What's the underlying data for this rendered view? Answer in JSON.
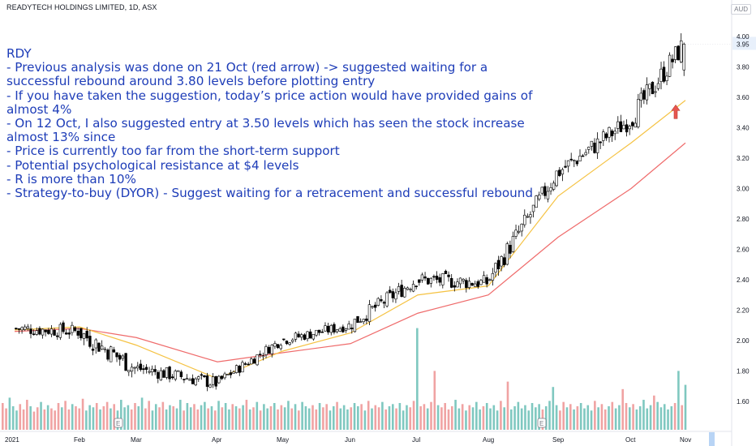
{
  "header": {
    "symbol_title": "READYTECH HOLDINGS LIMITED, 1D, ASX",
    "currency": "AUD"
  },
  "annotation": {
    "lines": [
      "RDY",
      "- Previous analysis was done on 21 Oct (red arrow) -> suggested waiting for a",
      "successful rebound around 3.80 levels before plotting entry",
      "- If you have taken the suggestion, today’s price action would have provided gains of",
      "almost 4%",
      "- On 12 Oct, I also suggested entry at 3.50 levels which has seen the stock increase",
      "almost 13% since",
      "- Price is currently too far from the short-term support",
      "- Potential psychological resistance at $4 levels",
      "- R is more than 10%",
      "- Strategy-to-buy (DYOR) - Suggest waiting for a retracement and successful rebound"
    ]
  },
  "colors": {
    "bull_candle_body": "#ffffff",
    "bear_candle_body": "#000000",
    "candle_outline": "#000000",
    "fast_ma": "#f5c242",
    "slow_ma": "#ef6b6b",
    "volume_up": "#7fc8c0",
    "volume_down": "#f0a3a3",
    "annotation_text": "#1e3db8",
    "arrow": "#e8564f",
    "axis_text": "#131722",
    "last_price_bg": "#e8f0fb"
  },
  "icons": {
    "earnings_markers": [
      "earnings-e-icon",
      "earnings-e-icon"
    ],
    "annotation_arrow": "up-arrow-icon"
  },
  "chart_data": {
    "type": "candlestick",
    "title": "READYTECH HOLDINGS LIMITED, 1D, ASX",
    "ylabel": "AUD",
    "ylim": [
      1.4,
      4.0
    ],
    "y_scale": "linear",
    "y_ticks": [
      "4.00",
      "3.95",
      "3.80",
      "3.60",
      "3.40",
      "3.20",
      "3.00",
      "2.80",
      "2.60",
      "2.40",
      "2.20",
      "2.00",
      "1.80",
      "1.60"
    ],
    "x_ticks": [
      "2021",
      "Feb",
      "Mar",
      "Apr",
      "May",
      "Jun",
      "Jul",
      "Aug",
      "Sep",
      "Oct",
      "Nov"
    ],
    "last_price": 3.95,
    "series": [
      {
        "name": "Price",
        "kind": "candlestick",
        "segments": [
          {
            "start": "2021",
            "end": "Feb",
            "from": 2.08,
            "to": 2.06,
            "range": 0.09
          },
          {
            "start": "Feb",
            "end": "Mar",
            "from": 2.06,
            "to": 1.82,
            "range": 0.13
          },
          {
            "start": "Mar",
            "end": "Apr",
            "from": 1.82,
            "to": 1.72,
            "range": 0.09
          },
          {
            "start": "Apr",
            "end": "May",
            "from": 1.72,
            "to": 2.0,
            "range": 0.07
          },
          {
            "start": "May",
            "end": "Jun",
            "from": 2.0,
            "to": 2.1,
            "range": 0.07
          },
          {
            "start": "Jun",
            "end": "Jul",
            "from": 2.1,
            "to": 2.4,
            "range": 0.1
          },
          {
            "start": "Jul",
            "end": "Aug",
            "from": 2.4,
            "to": 2.38,
            "range": 0.1
          },
          {
            "start": "Aug",
            "end": "Sep",
            "from": 2.38,
            "to": 3.1,
            "range": 0.13
          },
          {
            "start": "Sep",
            "end": "Oct",
            "from": 3.1,
            "to": 3.45,
            "range": 0.13
          },
          {
            "start": "Oct",
            "end": "Nov",
            "from": 3.45,
            "to": 3.95,
            "range": 0.15
          }
        ]
      },
      {
        "name": "",
        "kind": "moving-average-fast",
        "points": [
          [
            "2021",
            2.07
          ],
          [
            "Feb",
            2.09
          ],
          [
            "Mar",
            1.97
          ],
          [
            "Apr",
            1.75
          ],
          [
            "May",
            1.93
          ],
          [
            "Jun",
            2.05
          ],
          [
            "Jul",
            2.3
          ],
          [
            "Aug",
            2.36
          ],
          [
            "Sep",
            2.95
          ],
          [
            "Oct",
            3.3
          ],
          [
            "Nov",
            3.58
          ]
        ]
      },
      {
        "name": "",
        "kind": "moving-average-slow",
        "points": [
          [
            "2021",
            2.06
          ],
          [
            "Feb",
            2.08
          ],
          [
            "Mar",
            2.02
          ],
          [
            "Apr",
            1.86
          ],
          [
            "May",
            1.92
          ],
          [
            "Jun",
            1.98
          ],
          [
            "Jul",
            2.18
          ],
          [
            "Aug",
            2.3
          ],
          [
            "Sep",
            2.68
          ],
          [
            "Oct",
            3.0
          ],
          [
            "Nov",
            3.3
          ]
        ]
      }
    ],
    "volume": {
      "values": [
        0.25,
        0.2,
        0.3,
        0.22,
        0.18,
        0.24,
        0.19,
        0.28,
        0.22,
        0.17,
        0.21,
        0.26,
        0.19,
        0.23,
        0.2,
        0.18,
        0.25,
        0.21,
        0.27,
        0.19,
        0.24,
        0.22,
        0.2,
        0.29,
        0.18,
        0.23,
        0.21,
        0.25,
        0.19,
        0.22,
        0.26,
        0.2,
        0.24,
        0.18,
        0.28,
        0.21,
        0.23,
        0.19,
        0.25,
        0.22,
        0.3,
        0.2,
        0.27,
        0.18,
        0.24,
        0.21,
        0.26,
        0.19,
        0.23,
        0.22,
        0.2,
        0.28,
        0.18,
        0.25,
        0.21,
        0.24,
        0.19,
        0.23,
        0.26,
        0.2,
        0.22,
        0.18,
        0.27,
        0.21,
        0.25,
        0.19,
        0.24,
        0.22,
        0.2,
        0.23,
        0.28,
        0.19,
        0.21,
        0.26,
        0.18,
        0.24,
        0.2,
        0.22,
        0.25,
        0.19,
        0.23,
        0.21,
        0.27,
        0.2,
        0.24,
        0.18,
        0.26,
        0.22,
        0.2,
        0.23,
        0.19,
        0.25,
        0.21,
        0.24,
        0.18,
        0.22,
        0.26,
        0.2,
        0.23,
        0.19,
        0.21,
        0.25,
        0.22,
        0.24,
        0.18,
        0.27,
        0.2,
        0.23,
        0.21,
        0.26,
        0.19,
        0.22,
        0.24,
        0.2,
        0.25,
        0.18,
        0.23,
        0.21,
        0.27,
        0.19,
        0.22,
        0.24,
        0.2,
        0.26,
        0.18,
        0.23,
        0.21,
        0.25,
        0.19,
        0.22,
        0.28,
        0.2,
        0.24,
        0.18,
        0.23,
        0.21,
        0.26,
        0.19,
        0.22,
        0.25,
        0.2,
        0.23,
        0.18,
        0.27,
        0.21,
        0.24,
        0.19,
        0.22,
        0.26,
        0.2,
        0.23,
        0.18,
        0.25,
        0.21,
        0.24,
        0.19,
        0.22,
        0.27,
        0.2,
        0.23,
        0.18,
        0.26,
        0.21,
        0.24,
        0.19,
        0.22,
        0.25,
        0.2,
        0.23,
        0.18,
        0.27,
        0.21,
        0.24,
        0.19,
        0.22,
        0.26,
        0.2,
        0.23,
        0.18,
        0.25,
        0.21,
        0.24,
        0.19,
        0.22,
        0.28,
        0.2,
        0.23,
        0.18,
        0.26,
        0.21,
        0.24,
        0.19,
        0.22,
        0.25,
        0.2,
        0.23,
        0.18
      ],
      "spikes": [
        {
          "index": 119,
          "value": 0.95
        },
        {
          "index": 124,
          "value": 0.55
        },
        {
          "index": 145,
          "value": 0.45
        },
        {
          "index": 158,
          "value": 0.4
        },
        {
          "index": 178,
          "value": 0.38
        },
        {
          "index": 187,
          "value": 0.32
        },
        {
          "index": 194,
          "value": 0.55
        },
        {
          "index": 196,
          "value": 0.42
        },
        {
          "index": 210,
          "value": 0.38
        },
        {
          "index": 212,
          "value": 0.48
        },
        {
          "index": 222,
          "value": 0.42
        },
        {
          "index": 230,
          "value": 0.38
        },
        {
          "index": 246,
          "value": 0.42
        },
        {
          "index": 249,
          "value": 0.6
        },
        {
          "index": 251,
          "value": 1.0
        }
      ]
    }
  }
}
